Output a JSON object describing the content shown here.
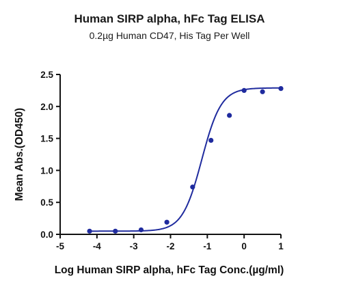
{
  "chart_data": {
    "type": "scatter",
    "title": "Human SIRP alpha, hFc Tag ELISA",
    "subtitle": "0.2µg Human CD47, His Tag Per Well",
    "xlabel": "Log Human SIRP alpha, hFc Tag Conc.(µg/ml)",
    "ylabel": "Mean Abs.(OD450)",
    "xlim": [
      -5,
      1
    ],
    "ylim": [
      0,
      2.5
    ],
    "x_ticks": [
      "-5",
      "-4",
      "-3",
      "-2",
      "-1",
      "0",
      "1"
    ],
    "y_ticks": [
      "0.0",
      "0.5",
      "1.0",
      "1.5",
      "2.0",
      "2.5"
    ],
    "grid": false,
    "legend": "none",
    "series": [
      {
        "points": [
          {
            "x": -4.2,
            "y": 0.05
          },
          {
            "x": -3.5,
            "y": 0.05
          },
          {
            "x": -2.8,
            "y": 0.07
          },
          {
            "x": -2.1,
            "y": 0.19
          },
          {
            "x": -1.4,
            "y": 0.74
          },
          {
            "x": -0.9,
            "y": 1.47
          },
          {
            "x": -0.4,
            "y": 1.86
          },
          {
            "x": 0.0,
            "y": 2.25
          },
          {
            "x": 0.5,
            "y": 2.23
          },
          {
            "x": 1.0,
            "y": 2.28
          }
        ],
        "fit_curve": {
          "model": "4PL",
          "bottom": 0.05,
          "top": 2.29,
          "logEC50": -1.15,
          "hill": 1.65
        }
      }
    ],
    "colors": {
      "series": "#1f2b9e",
      "axis": "#111111"
    }
  }
}
